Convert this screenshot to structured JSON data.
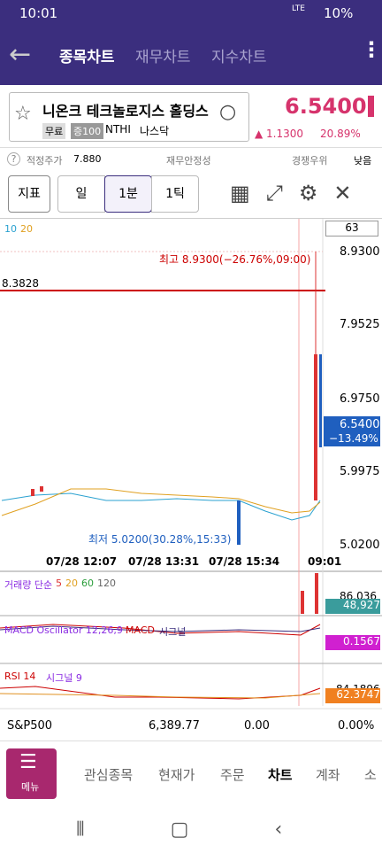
{
  "status": {
    "time": "10:01",
    "battery": "10%",
    "lte": "LTE"
  },
  "header": {
    "tabs": [
      "종목차트",
      "재무차트",
      "지수차트"
    ]
  },
  "stock": {
    "name": "니온크 테크놀로지스 홀딩스",
    "badges": [
      "무료",
      "증100"
    ],
    "ticker": "NTHI",
    "market": "나스닥",
    "price": "6.5400",
    "change": "▲ 1.1300",
    "change_pct": "20.89%"
  },
  "info": {
    "fair_label": "적정주가",
    "fair_value": "7.880",
    "stability": "재무안정성",
    "competitive": "경쟁우위",
    "level": "낮음"
  },
  "toolbar": {
    "buttons": [
      "지표",
      "일",
      "1분",
      "1틱"
    ]
  },
  "chart": {
    "ma": [
      "10",
      "20"
    ],
    "count": "63",
    "yticks": [
      "8.9300",
      "7.9525",
      "6.9750",
      "5.9975",
      "5.0200"
    ],
    "line_label": "8.3828",
    "high": "최고 8.9300(−26.76%,09:00)",
    "low": "최저 5.0200(30.28%,15:33)",
    "last": "6.5400",
    "last_pct": "−13.49%",
    "xticks": [
      "07/28 12:07",
      "07/28 13:31",
      "07/28 15:34",
      "09:01"
    ]
  },
  "volume": {
    "label": "거래량 단순",
    "ma": [
      "5",
      "20",
      "60",
      "120"
    ],
    "top": "86.036",
    "last": "48,927"
  },
  "macd": {
    "label": "MACD Oscillator 12,26,9",
    "macd": "MACD",
    "signal": "시그널",
    "last": "0.1567"
  },
  "rsi": {
    "label": "RSI 14",
    "signal": "시그널 9",
    "top": "84.1896",
    "last": "62.3747"
  },
  "index": {
    "name": "S&P500",
    "value": "6,389.77",
    "change": "0.00",
    "pct": "0.00%"
  },
  "nav": {
    "menu": "메뉴",
    "items": [
      "관심종목",
      "현재가",
      "주문",
      "차트",
      "계좌",
      "소"
    ]
  }
}
